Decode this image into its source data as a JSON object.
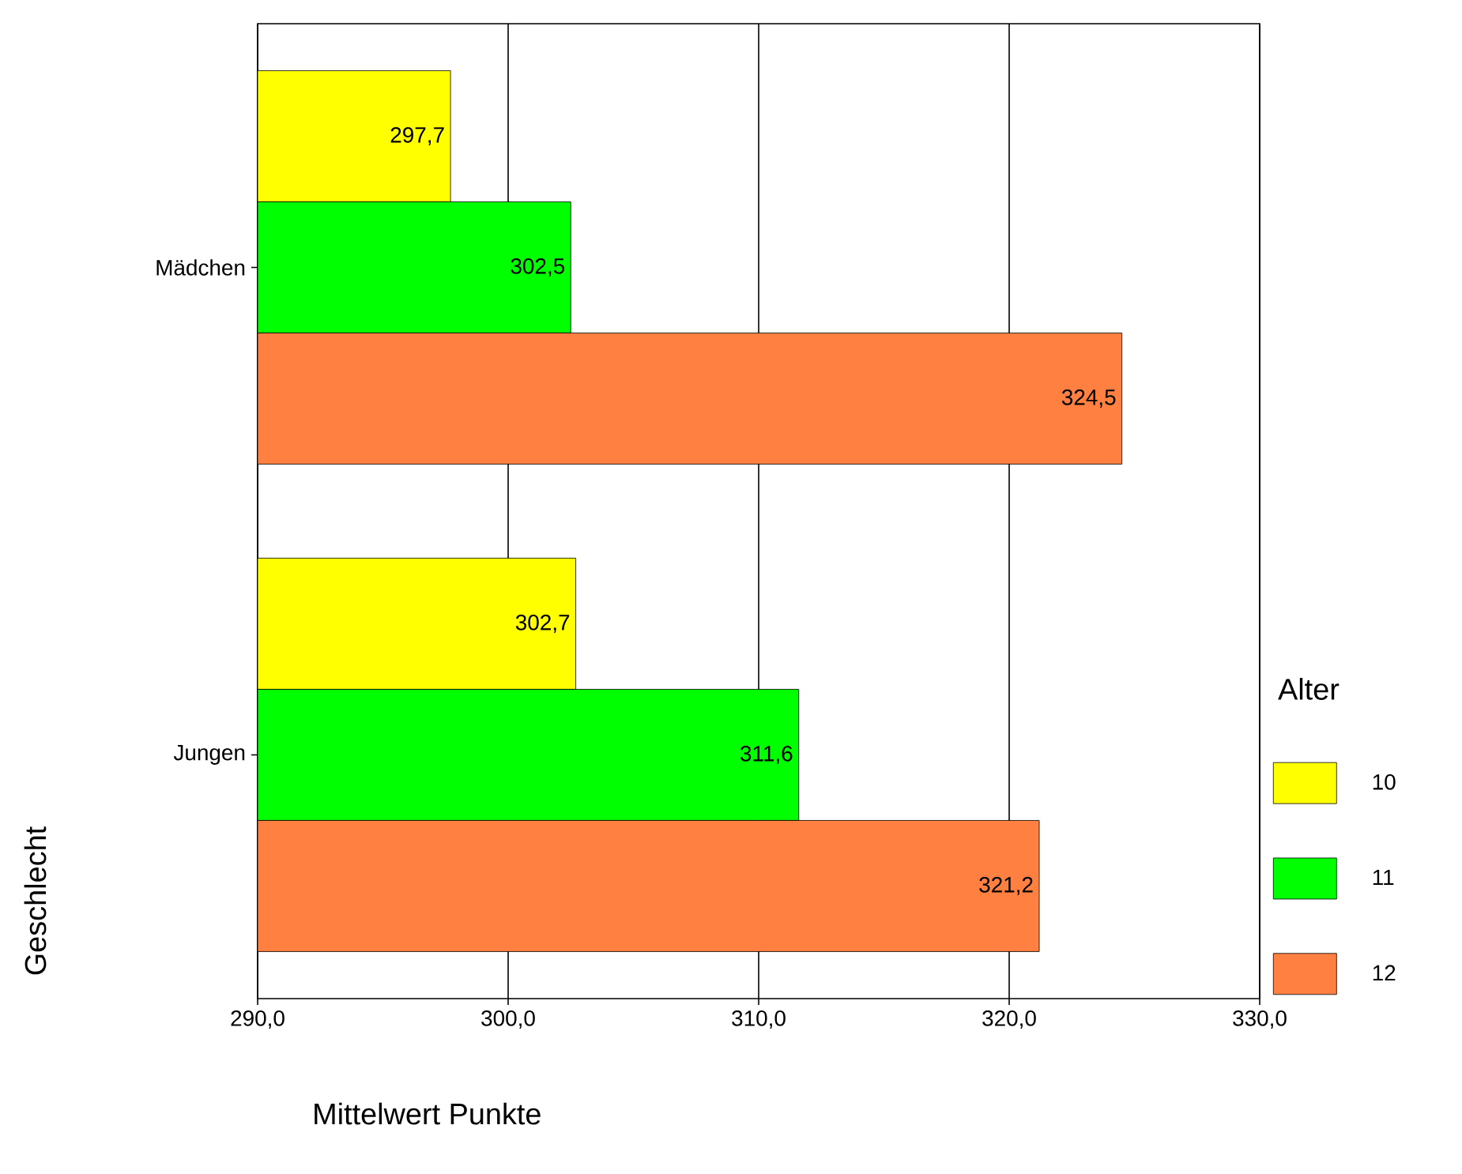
{
  "chart_data": {
    "type": "bar",
    "orientation": "horizontal",
    "categories": [
      "Mädchen",
      "Jungen"
    ],
    "xlabel": "Mittelwert Punkte",
    "ylabel": "Geschlecht",
    "legend_title": "Alter",
    "xlim": [
      290,
      330
    ],
    "xticks": [
      {
        "value": 290,
        "label": "290,0"
      },
      {
        "value": 300,
        "label": "300,0"
      },
      {
        "value": 310,
        "label": "310,0"
      },
      {
        "value": 320,
        "label": "320,0"
      },
      {
        "value": 330,
        "label": "330,0"
      }
    ],
    "grid": "x",
    "legend": "right",
    "series": [
      {
        "name": "10",
        "color": "#ffff00",
        "values": [
          297.7,
          302.7
        ],
        "value_labels": [
          "297,7",
          "302,7"
        ]
      },
      {
        "name": "11",
        "color": "#00ff00",
        "values": [
          302.5,
          311.6
        ],
        "value_labels": [
          "302,5",
          "311,6"
        ]
      },
      {
        "name": "12",
        "color": "#ff8040",
        "values": [
          324.5,
          321.2
        ],
        "value_labels": [
          "324,5",
          "321,2"
        ]
      }
    ]
  }
}
